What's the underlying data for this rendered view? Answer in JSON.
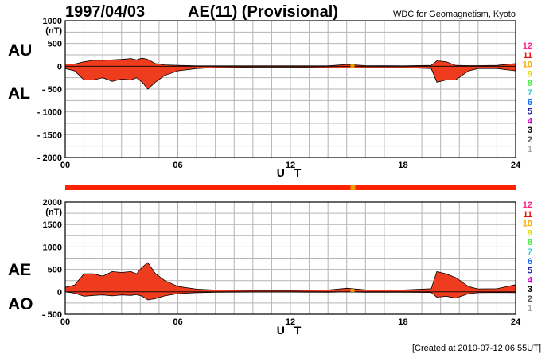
{
  "header": {
    "date": "1997/04/03",
    "title": "AE(11) (Provisional)",
    "organization": "WDC for Geomagnetism, Kyoto",
    "created": "[Created at 2010-07-12 06:55UT]"
  },
  "colors": {
    "fill": "#f03c1e",
    "bar": "#ff2200",
    "bar_marker": "#e8a000",
    "grid": "#b4b4b4",
    "legend": [
      "#ff2288",
      "#ee1111",
      "#ffaa00",
      "#dddd00",
      "#44ee44",
      "#33cccc",
      "#1166ff",
      "#2222aa",
      "#cc00cc",
      "#000000",
      "#555555",
      "#aaaaaa"
    ]
  },
  "legend_labels": [
    "12",
    "11",
    "10",
    "9",
    "8",
    "7",
    "6",
    "5",
    "4",
    "3",
    "2",
    "1"
  ],
  "chart_data": [
    {
      "type": "area",
      "panel": "AU/AL",
      "series_labels": [
        "AU",
        "AL"
      ],
      "ylabel_unit": "(nT)",
      "xlabel": "U T",
      "ylim": [
        -2000,
        1000
      ],
      "yticks": [
        1000,
        500,
        0,
        -500,
        -1000,
        -1500,
        -2000
      ],
      "ytick_labels": [
        "1000",
        "500",
        "0",
        "- 500",
        "- 1000",
        "- 1500",
        "- 2000"
      ],
      "xlim": [
        0,
        24
      ],
      "xticks": [
        0,
        6,
        12,
        18,
        24
      ],
      "xtick_labels": [
        "00",
        "06",
        "12",
        "18",
        "24"
      ],
      "grid": true,
      "x_hours": [
        0,
        0.5,
        1,
        1.5,
        2,
        2.5,
        3,
        3.5,
        3.8,
        4.1,
        4.4,
        4.8,
        5.3,
        6,
        7,
        8,
        10,
        12,
        14,
        15,
        16,
        18,
        19.5,
        19.8,
        20.3,
        20.8,
        21.5,
        22,
        23,
        24
      ],
      "upper_AU": [
        50,
        50,
        100,
        130,
        130,
        140,
        150,
        170,
        140,
        180,
        150,
        60,
        30,
        20,
        10,
        10,
        10,
        10,
        10,
        40,
        15,
        10,
        20,
        120,
        100,
        20,
        15,
        15,
        20,
        60
      ],
      "lower_AL": [
        -50,
        -100,
        -300,
        -300,
        -250,
        -330,
        -280,
        -300,
        -250,
        -350,
        -500,
        -350,
        -200,
        -100,
        -50,
        -30,
        -20,
        -20,
        -30,
        -40,
        -30,
        -30,
        -50,
        -350,
        -300,
        -300,
        -100,
        -50,
        -50,
        -100
      ]
    },
    {
      "type": "area",
      "panel": "AE/AO",
      "series_labels": [
        "AE",
        "AO"
      ],
      "ylabel_unit": "(nT)",
      "xlabel": "U T",
      "ylim": [
        -500,
        2000
      ],
      "yticks": [
        2000,
        1500,
        1000,
        500,
        0,
        -500
      ],
      "ytick_labels": [
        "2000",
        "1500",
        "1000",
        "500",
        "0",
        "- 500"
      ],
      "xlim": [
        0,
        24
      ],
      "xticks": [
        0,
        6,
        12,
        18,
        24
      ],
      "xtick_labels": [
        "00",
        "06",
        "12",
        "18",
        "24"
      ],
      "grid": true,
      "x_hours": [
        0,
        0.5,
        1,
        1.5,
        2,
        2.5,
        3,
        3.5,
        3.8,
        4.1,
        4.4,
        4.8,
        5.3,
        6,
        7,
        8,
        10,
        12,
        14,
        15,
        16,
        18,
        19.5,
        19.8,
        20.3,
        20.8,
        21.5,
        22,
        23,
        24
      ],
      "upper_AE": [
        100,
        150,
        400,
        400,
        350,
        450,
        430,
        450,
        400,
        550,
        650,
        410,
        250,
        120,
        60,
        40,
        30,
        30,
        40,
        80,
        45,
        40,
        70,
        450,
        400,
        320,
        115,
        65,
        70,
        160
      ],
      "lower_AO": [
        0,
        -30,
        -100,
        -80,
        -70,
        -90,
        -70,
        -80,
        -60,
        -100,
        -180,
        -150,
        -90,
        -40,
        -20,
        -10,
        -5,
        -5,
        -10,
        0,
        -8,
        -10,
        -15,
        -120,
        -100,
        -140,
        -40,
        -20,
        -15,
        -20
      ]
    }
  ]
}
